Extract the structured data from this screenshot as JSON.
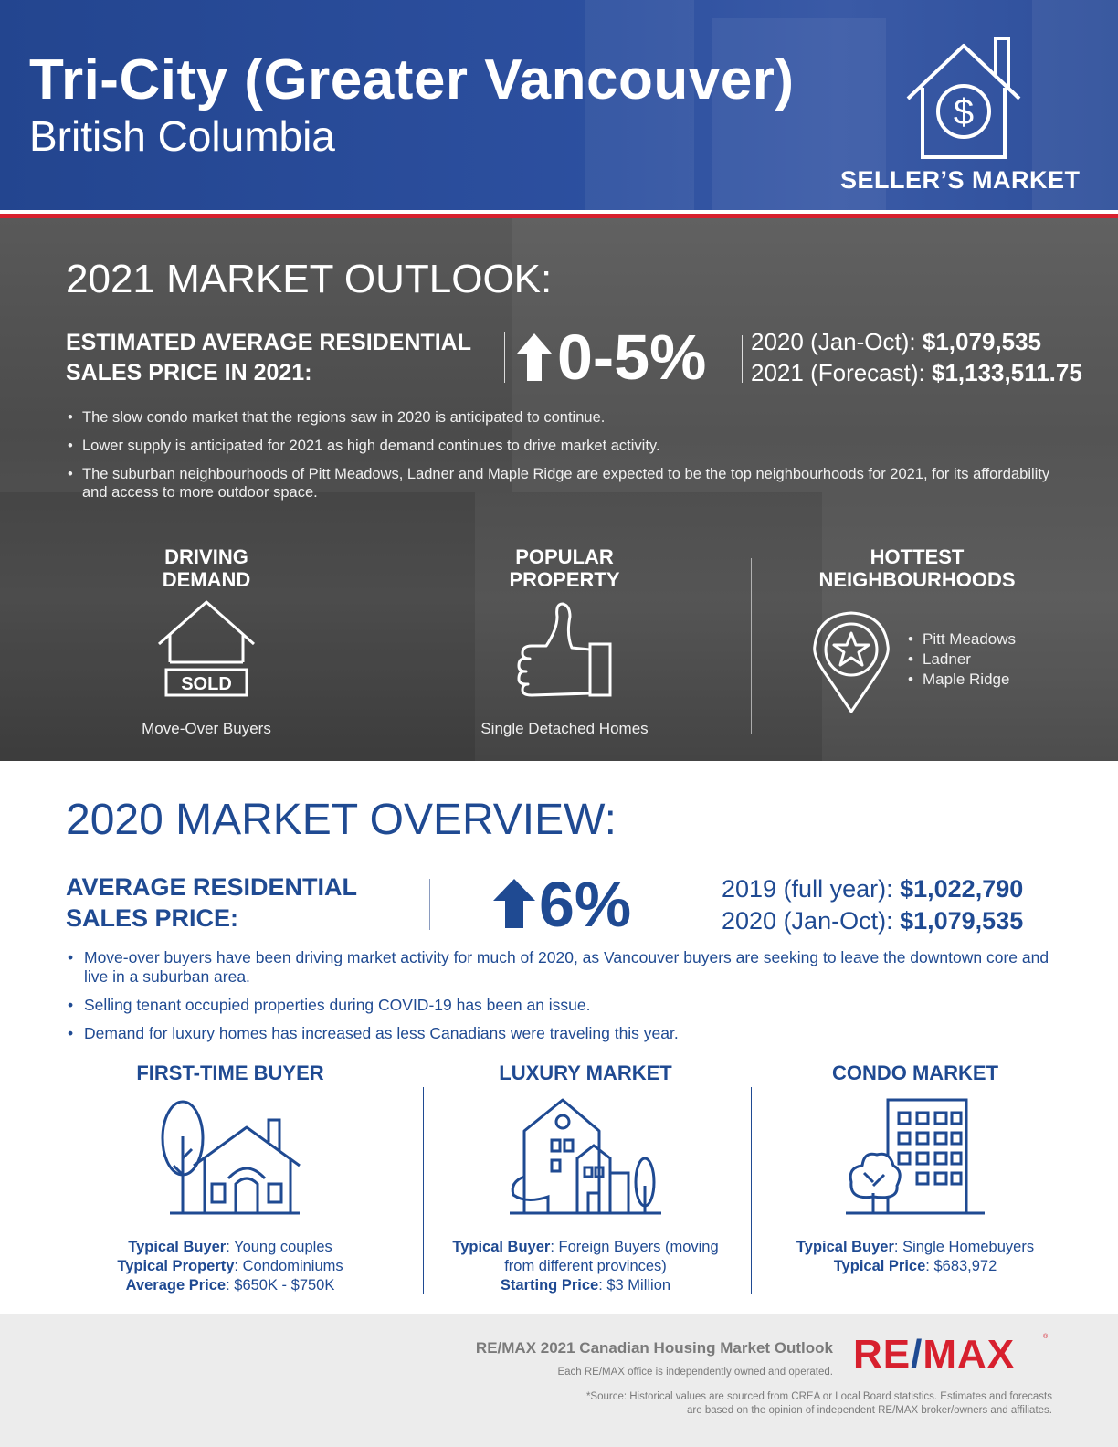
{
  "header": {
    "title": "Tri-City (Greater Vancouver)",
    "subtitle": "British Columbia",
    "market_type": "SELLER’S MARKET",
    "icon": "house-dollar-icon"
  },
  "outlook": {
    "title": "2021 MARKET OUTLOOK:",
    "label": "ESTIMATED AVERAGE RESIDENTIAL SALES PRICE IN 2021:",
    "change": "0-5%",
    "prices": [
      {
        "label": "2020 (Jan-Oct):",
        "value": "$1,079,535"
      },
      {
        "label": "2021 (Forecast):",
        "value": "$1,133,511.75"
      }
    ],
    "bullets": [
      "The slow condo market that the regions saw in 2020 is anticipated to continue.",
      "Lower supply is anticipated for 2021 as high demand continues to drive market activity.",
      "The suburban neighbourhoods of Pitt Meadows, Ladner and Maple Ridge are expected to be the top neighbourhoods for 2021, for its affordability and access to more outdoor space."
    ],
    "features": {
      "driving": {
        "title_line1": "DRIVING",
        "title_line2": "DEMAND",
        "sign": "SOLD",
        "caption": "Move-Over Buyers"
      },
      "popular": {
        "title_line1": "POPULAR",
        "title_line2": "PROPERTY",
        "caption": "Single Detached Homes"
      },
      "hottest": {
        "title_line1": "HOTTEST",
        "title_line2": "NEIGHBOURHOODS",
        "items": [
          "Pitt Meadows",
          "Ladner",
          "Maple Ridge"
        ]
      }
    }
  },
  "overview": {
    "title": "2020 MARKET OVERVIEW:",
    "label_line1": "AVERAGE RESIDENTIAL",
    "label_line2": "SALES PRICE:",
    "change": "6%",
    "prices": [
      {
        "label": "2019 (full year):",
        "value": "$1,022,790"
      },
      {
        "label": "2020 (Jan-Oct):",
        "value": "$1,079,535"
      }
    ],
    "bullets": [
      "Move-over buyers have been driving market activity for much of 2020, as Vancouver buyers are seeking to leave the downtown core and live in a suburban area.",
      "Selling tenant occupied properties during COVID-19 has been an issue.",
      "Demand for luxury homes has increased as less Canadians were traveling this year."
    ],
    "segments": {
      "first_time": {
        "title": "FIRST-TIME BUYER",
        "rows": [
          {
            "label": "Typical Buyer",
            "value": ": Young couples"
          },
          {
            "label": "Typical Property",
            "value": ": Condominiums"
          },
          {
            "label": "Average Price",
            "value": ": $650K - $750K"
          }
        ]
      },
      "luxury": {
        "title": "LUXURY MARKET",
        "buyer_label": "Typical Buyer",
        "buyer_value_line1": ": Foreign Buyers (moving",
        "buyer_value_line2": "from different provinces)",
        "price_label": "Starting Price",
        "price_value": ": $3 Million"
      },
      "condo": {
        "title": "CONDO MARKET",
        "rows": [
          {
            "label": "Typical Buyer",
            "value": ": Single Homebuyers"
          },
          {
            "label": "Typical Price",
            "value": ": $683,972"
          }
        ]
      }
    }
  },
  "footer": {
    "report_title": "RE/MAX 2021 Canadian Housing Market Outlook",
    "owned_note": "Each RE/MAX office is independently owned and operated.",
    "logo_left": "RE",
    "logo_slash": "/",
    "logo_right": "MAX",
    "logo_reg": "®",
    "source_line1": "*Source: Historical values are sourced from CREA or Local Board statistics. Estimates and forecasts",
    "source_line2": "are based on the opinion of independent RE/MAX broker/owners and affiliates."
  },
  "colors": {
    "brand_blue": "#1f4a92",
    "header_blue": "#2d50a0",
    "brand_red": "#d7202e",
    "dark_band": "#4f4f4f",
    "footer_grey": "#ececec"
  }
}
